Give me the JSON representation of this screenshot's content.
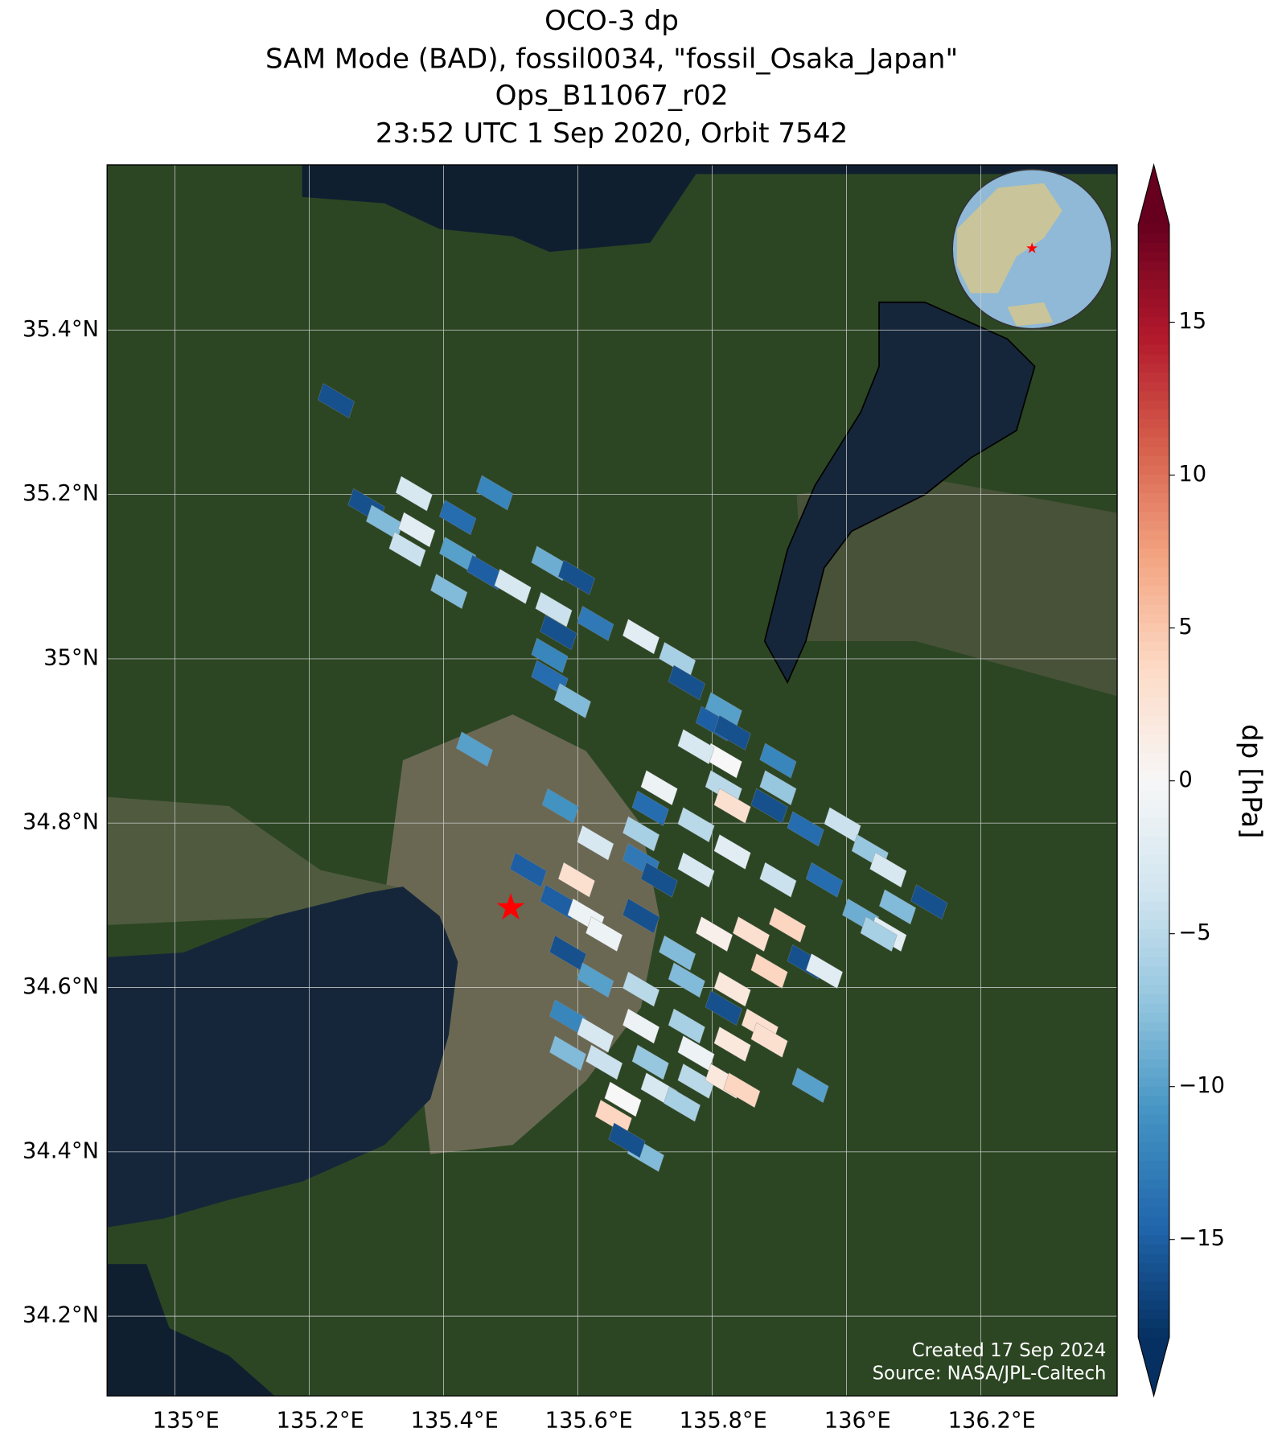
{
  "chart_data": {
    "type": "map",
    "title": [
      "OCO-3 dp",
      "SAM Mode (BAD), fossil0034, \"fossil_Osaka_Japan\"",
      "Ops_B11067_r02",
      "23:52 UTC 1 Sep 2020, Orbit 7542"
    ],
    "xlim": [
      134.899,
      136.403
    ],
    "ylim": [
      34.103,
      35.601
    ],
    "xticks": [
      {
        "value": 135.0,
        "label": "135°E"
      },
      {
        "value": 135.2,
        "label": "135.2°E"
      },
      {
        "value": 135.4,
        "label": "135.4°E"
      },
      {
        "value": 135.6,
        "label": "135.6°E"
      },
      {
        "value": 135.8,
        "label": "135.8°E"
      },
      {
        "value": 136.0,
        "label": "136°E"
      },
      {
        "value": 136.2,
        "label": "136.2°E"
      }
    ],
    "yticks": [
      {
        "value": 34.2,
        "label": "34.2°N"
      },
      {
        "value": 34.4,
        "label": "34.4°N"
      },
      {
        "value": 34.6,
        "label": "34.6°N"
      },
      {
        "value": 34.8,
        "label": "34.8°N"
      },
      {
        "value": 35.0,
        "label": "35°N"
      },
      {
        "value": 35.2,
        "label": "35.2°N"
      },
      {
        "value": 35.4,
        "label": "35.4°N"
      }
    ],
    "grid": true,
    "site": {
      "lon": 135.5,
      "lat": 34.695,
      "color": "#ff0000"
    },
    "soundings": {
      "lon": [
        135.24,
        135.285,
        135.356,
        135.476,
        135.312,
        135.36,
        135.421,
        135.346,
        135.421,
        135.462,
        135.408,
        135.503,
        135.558,
        135.598,
        135.564,
        135.626,
        135.694,
        135.571,
        135.558,
        135.748,
        135.762,
        135.558,
        135.592,
        135.817,
        135.803,
        135.83,
        135.446,
        135.817,
        135.776,
        135.898,
        135.721,
        135.817,
        135.898,
        135.708,
        135.83,
        135.574,
        135.994,
        135.626,
        135.694,
        135.776,
        135.885,
        135.939,
        136.035,
        136.062,
        136.123,
        135.526,
        135.598,
        135.571,
        135.612,
        135.694,
        135.721,
        135.776,
        135.83,
        135.898,
        135.967,
        136.021,
        136.062,
        135.585,
        135.639,
        135.694,
        135.748,
        135.803,
        135.858,
        135.912,
        135.939,
        135.967,
        135.626,
        135.694,
        135.762,
        135.83,
        135.885,
        135.585,
        135.626,
        135.694,
        135.762,
        135.817,
        135.871,
        135.585,
        135.639,
        135.708,
        135.776,
        135.83,
        135.885,
        135.667,
        135.721,
        135.776,
        135.817,
        135.844,
        135.653,
        135.755,
        135.701,
        135.673,
        135.946,
        136.076,
        136.048
      ],
      "lat": [
        35.314,
        35.186,
        35.201,
        35.202,
        35.166,
        35.157,
        35.172,
        35.133,
        35.127,
        35.105,
        35.082,
        35.088,
        35.116,
        35.099,
        35.06,
        35.043,
        35.027,
        35.032,
        35.004,
        34.999,
        34.971,
        34.977,
        34.949,
        34.938,
        34.921,
        34.91,
        34.89,
        34.876,
        34.893,
        34.876,
        34.843,
        34.843,
        34.843,
        34.818,
        34.821,
        34.821,
        34.798,
        34.776,
        34.787,
        34.798,
        34.821,
        34.793,
        34.765,
        34.743,
        34.704,
        34.743,
        34.731,
        34.704,
        34.687,
        34.754,
        34.731,
        34.743,
        34.765,
        34.731,
        34.731,
        34.687,
        34.665,
        34.642,
        34.665,
        34.687,
        34.642,
        34.665,
        34.665,
        34.676,
        34.631,
        34.62,
        34.609,
        34.598,
        34.609,
        34.598,
        34.62,
        34.564,
        34.542,
        34.553,
        34.553,
        34.575,
        34.553,
        34.52,
        34.509,
        34.509,
        34.52,
        34.531,
        34.536,
        34.464,
        34.475,
        34.486,
        34.486,
        34.475,
        34.442,
        34.458,
        34.397,
        34.414,
        34.481,
        34.698,
        34.665
      ],
      "dp": [
        -16,
        -16,
        -3,
        -12,
        -8,
        -2,
        -14,
        -4,
        -10,
        -15,
        -8,
        -3,
        -9,
        -16,
        -4,
        -13,
        -2,
        -16,
        -12,
        -6,
        -16,
        -14,
        -8,
        -10,
        -15,
        -16,
        -10,
        0,
        -3,
        -12,
        -1,
        -5,
        -7,
        -14,
        3,
        -11,
        -4,
        -3,
        -6,
        -5,
        -16,
        -14,
        -7,
        -3,
        -16,
        -15,
        3,
        -15,
        -1,
        -13,
        -16,
        -3,
        -2,
        -4,
        -14,
        -9,
        -2,
        -16,
        -1,
        -16,
        -8,
        1,
        3,
        4,
        -16,
        -2,
        -10,
        -5,
        -8,
        2,
        4,
        -12,
        -3,
        -1,
        -6,
        -16,
        3,
        -8,
        -4,
        -7,
        -1,
        2,
        3,
        0,
        -3,
        -5,
        2,
        4,
        4,
        -6,
        -8,
        -16,
        -10,
        -8,
        -6
      ]
    },
    "colorbar": {
      "label": "dp [hPa]",
      "lim": [
        -18.2,
        18.2
      ],
      "extend": "both",
      "cmap": [
        "#053061",
        "#2166ac",
        "#4393c3",
        "#92c5de",
        "#d1e5f0",
        "#f7f7f7",
        "#fddbc7",
        "#f4a582",
        "#d6604d",
        "#b2182b",
        "#67001f"
      ],
      "ticks": [
        {
          "value": -15,
          "label": "−15"
        },
        {
          "value": -10,
          "label": "−10"
        },
        {
          "value": -5,
          "label": "−5"
        },
        0,
        5,
        10,
        15
      ]
    },
    "notes": [
      "Created 17 Sep 2024",
      "Source: NASA/JPL-Caltech"
    ]
  }
}
